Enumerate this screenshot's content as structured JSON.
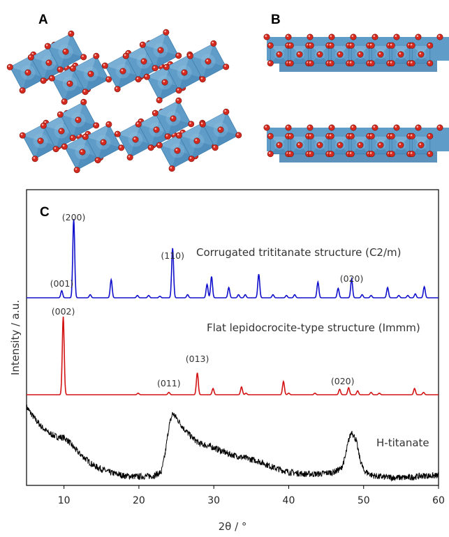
{
  "figure": {
    "panel_labels": {
      "a": "A",
      "b": "B",
      "c": "C"
    },
    "colors": {
      "octahedron_face": "#5f9cc8",
      "octahedron_dark": "#3f7faf",
      "octahedron_light": "#8fc0e0",
      "oxygen": "#d42a1f",
      "blue_series": "#1010cc",
      "red_series": "#d41414",
      "black_series": "#000000"
    }
  },
  "chart_data": {
    "type": "line",
    "title": "",
    "xlabel": "2θ / °",
    "ylabel": "Intensity / a.u.",
    "xlim": [
      5,
      60
    ],
    "xticks": [
      10,
      20,
      30,
      40,
      50,
      60
    ],
    "xtick_labels": [
      "10",
      "20",
      "30",
      "40",
      "50",
      "60"
    ],
    "legend": "none",
    "grid": false,
    "series": [
      {
        "name": "Corrugated trititanate structure (C2/m)",
        "color": "#1010cc",
        "style": "stick-pattern",
        "peaks": [
          {
            "x": 9.7,
            "y": 0.09
          },
          {
            "x": 11.3,
            "y": 1.0
          },
          {
            "x": 13.5,
            "y": 0.04
          },
          {
            "x": 16.3,
            "y": 0.23
          },
          {
            "x": 19.8,
            "y": 0.03
          },
          {
            "x": 21.3,
            "y": 0.03
          },
          {
            "x": 22.8,
            "y": 0.02
          },
          {
            "x": 24.5,
            "y": 0.63
          },
          {
            "x": 26.5,
            "y": 0.04
          },
          {
            "x": 29.1,
            "y": 0.17
          },
          {
            "x": 29.7,
            "y": 0.27
          },
          {
            "x": 32.0,
            "y": 0.13
          },
          {
            "x": 33.3,
            "y": 0.04
          },
          {
            "x": 34.2,
            "y": 0.04
          },
          {
            "x": 36.0,
            "y": 0.3
          },
          {
            "x": 37.9,
            "y": 0.04
          },
          {
            "x": 39.7,
            "y": 0.03
          },
          {
            "x": 40.8,
            "y": 0.04
          },
          {
            "x": 43.9,
            "y": 0.2
          },
          {
            "x": 46.6,
            "y": 0.12
          },
          {
            "x": 48.4,
            "y": 0.24
          },
          {
            "x": 49.8,
            "y": 0.04
          },
          {
            "x": 51.0,
            "y": 0.03
          },
          {
            "x": 53.2,
            "y": 0.13
          },
          {
            "x": 54.7,
            "y": 0.03
          },
          {
            "x": 55.9,
            "y": 0.03
          },
          {
            "x": 56.9,
            "y": 0.05
          },
          {
            "x": 58.1,
            "y": 0.14
          }
        ],
        "annotations": [
          {
            "x": 9.7,
            "text": "(001)"
          },
          {
            "x": 11.3,
            "text": "(200)"
          },
          {
            "x": 24.5,
            "text": "(110)"
          },
          {
            "x": 48.4,
            "text": "(020)"
          }
        ]
      },
      {
        "name": "Flat lepidocrocite-type structure (Immm)",
        "color": "#d41414",
        "style": "stick-pattern",
        "peaks": [
          {
            "x": 9.9,
            "y": 1.0
          },
          {
            "x": 19.9,
            "y": 0.02
          },
          {
            "x": 24.0,
            "y": 0.03
          },
          {
            "x": 27.8,
            "y": 0.28
          },
          {
            "x": 29.9,
            "y": 0.08
          },
          {
            "x": 33.7,
            "y": 0.1
          },
          {
            "x": 34.3,
            "y": 0.02
          },
          {
            "x": 39.3,
            "y": 0.17
          },
          {
            "x": 40.0,
            "y": 0.02
          },
          {
            "x": 43.5,
            "y": 0.02
          },
          {
            "x": 46.8,
            "y": 0.07
          },
          {
            "x": 48.0,
            "y": 0.09
          },
          {
            "x": 49.2,
            "y": 0.05
          },
          {
            "x": 51.0,
            "y": 0.03
          },
          {
            "x": 52.1,
            "y": 0.02
          },
          {
            "x": 56.8,
            "y": 0.08
          },
          {
            "x": 58.0,
            "y": 0.03
          }
        ],
        "annotations": [
          {
            "x": 9.9,
            "text": "(002)"
          },
          {
            "x": 24.0,
            "text": "(011)"
          },
          {
            "x": 27.8,
            "text": "(013)"
          },
          {
            "x": 47.2,
            "text": "(020)"
          }
        ]
      },
      {
        "name": "H-titanate",
        "color": "#000000",
        "style": "noisy-measured",
        "x": [
          5,
          6,
          7,
          8,
          9,
          10,
          10.5,
          11,
          12,
          13,
          14,
          16,
          18,
          20,
          22,
          23,
          23.5,
          24,
          24.5,
          25,
          26,
          27,
          28,
          30,
          32,
          34,
          36,
          38,
          40,
          42,
          44,
          45,
          46,
          47,
          47.5,
          48,
          48.4,
          49,
          49.5,
          50,
          51,
          52,
          54,
          56,
          58,
          60
        ],
        "y": [
          0.82,
          0.7,
          0.6,
          0.53,
          0.49,
          0.48,
          0.45,
          0.4,
          0.31,
          0.24,
          0.17,
          0.1,
          0.06,
          0.05,
          0.06,
          0.1,
          0.3,
          0.6,
          0.75,
          0.7,
          0.58,
          0.49,
          0.42,
          0.37,
          0.3,
          0.26,
          0.22,
          0.15,
          0.1,
          0.08,
          0.08,
          0.09,
          0.1,
          0.14,
          0.25,
          0.45,
          0.55,
          0.45,
          0.25,
          0.12,
          0.07,
          0.05,
          0.04,
          0.04,
          0.06,
          0.06
        ]
      }
    ]
  }
}
